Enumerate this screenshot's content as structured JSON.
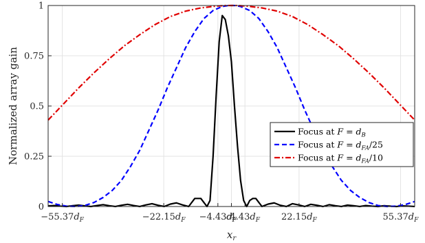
{
  "chart_data": {
    "type": "line",
    "xlabel_var": "x",
    "xlabel_sub": "r",
    "ylabel": "Normalized array gain",
    "xlim": [
      -60,
      60
    ],
    "ylim": [
      0,
      1
    ],
    "grid": true,
    "legend_position": "bottom-right",
    "x_ticks": [
      {
        "value": -55.37,
        "num": "−55.37",
        "sub": "F"
      },
      {
        "value": -22.15,
        "num": "−22.15",
        "sub": "F"
      },
      {
        "value": -4.43,
        "num": "−4.43",
        "sub": "F"
      },
      {
        "value": 0,
        "num": "",
        "sub": "F"
      },
      {
        "value": 4.43,
        "num": "4.43",
        "sub": "F"
      },
      {
        "value": 22.15,
        "num": "22.15",
        "sub": "F"
      },
      {
        "value": 55.37,
        "num": "55.37",
        "sub": "F"
      }
    ],
    "y_ticks": [
      "0",
      "0.25",
      "0.5",
      "0.75",
      "1"
    ],
    "series": [
      {
        "name_prefix": "Focus at ",
        "name_var": "F",
        "name_eq": " = ",
        "name_d": "d",
        "name_sub": "B",
        "name_tail": "",
        "color": "#000000",
        "dash": "solid",
        "x": [
          -60,
          -58,
          -56,
          -54,
          -52,
          -50,
          -48,
          -46,
          -44,
          -42,
          -40,
          -38,
          -36,
          -34,
          -32,
          -30,
          -28,
          -26,
          -24,
          -22,
          -20,
          -18,
          -16,
          -14,
          -12,
          -10,
          -9,
          -8,
          -7,
          -6,
          -5,
          -4,
          -3,
          -2,
          -1,
          0,
          1,
          2,
          3,
          4,
          5,
          6,
          7,
          8,
          9,
          10,
          12,
          14,
          16,
          18,
          20,
          22,
          24,
          26,
          28,
          30,
          32,
          34,
          36,
          38,
          40,
          42,
          44,
          46,
          48,
          50,
          52,
          54,
          56,
          58,
          60
        ],
        "y": [
          0.003,
          0.005,
          0.002,
          0.0,
          0.004,
          0.007,
          0.003,
          0.0,
          0.005,
          0.009,
          0.004,
          0.0,
          0.006,
          0.011,
          0.005,
          0.0,
          0.008,
          0.014,
          0.006,
          0.0,
          0.012,
          0.018,
          0.008,
          0.0,
          0.04,
          0.04,
          0.02,
          0.0,
          0.03,
          0.25,
          0.55,
          0.82,
          0.95,
          0.93,
          0.85,
          0.72,
          0.5,
          0.3,
          0.13,
          0.03,
          0.0,
          0.03,
          0.04,
          0.04,
          0.02,
          0.0,
          0.012,
          0.018,
          0.006,
          0.0,
          0.014,
          0.008,
          0.0,
          0.011,
          0.006,
          0.0,
          0.009,
          0.004,
          0.0,
          0.007,
          0.004,
          0.0,
          0.005,
          0.002,
          0.0,
          0.004,
          0.002,
          0.0,
          0.003,
          0.002,
          0.0
        ]
      },
      {
        "name_prefix": "Focus at ",
        "name_var": "F",
        "name_eq": " = ",
        "name_d": "d",
        "name_sub": "FA",
        "name_tail": "/25",
        "color": "#0000ff",
        "dash": "dashed",
        "x": [
          -60,
          -57,
          -54,
          -51,
          -48,
          -45,
          -42,
          -39,
          -36,
          -33,
          -30,
          -27,
          -24,
          -21,
          -18,
          -15,
          -12,
          -9,
          -6,
          -3,
          -1,
          0,
          1,
          3,
          6,
          9,
          12,
          15,
          18,
          21,
          24,
          27,
          30,
          33,
          36,
          39,
          42,
          45,
          48,
          51,
          54,
          57,
          60
        ],
        "y": [
          0.025,
          0.01,
          0.002,
          0.0,
          0.005,
          0.02,
          0.045,
          0.08,
          0.13,
          0.2,
          0.28,
          0.38,
          0.48,
          0.59,
          0.69,
          0.79,
          0.87,
          0.935,
          0.975,
          0.995,
          1.0,
          1.0,
          1.0,
          0.995,
          0.975,
          0.935,
          0.87,
          0.79,
          0.69,
          0.59,
          0.48,
          0.38,
          0.28,
          0.2,
          0.13,
          0.08,
          0.045,
          0.02,
          0.005,
          0.0,
          0.002,
          0.01,
          0.025
        ]
      },
      {
        "name_prefix": "Focus at ",
        "name_var": "F",
        "name_eq": " = ",
        "name_d": "d",
        "name_sub": "FA",
        "name_tail": "/10",
        "color": "#e00000",
        "dash": "dashdot",
        "x": [
          -60,
          -55,
          -50,
          -45,
          -40,
          -35,
          -30,
          -25,
          -20,
          -15,
          -10,
          -5,
          -2,
          0,
          2,
          5,
          10,
          15,
          20,
          25,
          30,
          35,
          40,
          45,
          50,
          55,
          60
        ],
        "y": [
          0.43,
          0.51,
          0.59,
          0.665,
          0.735,
          0.8,
          0.855,
          0.905,
          0.945,
          0.972,
          0.988,
          0.997,
          1.0,
          1.0,
          1.0,
          0.997,
          0.988,
          0.972,
          0.945,
          0.905,
          0.855,
          0.8,
          0.735,
          0.665,
          0.59,
          0.51,
          0.43
        ]
      }
    ]
  }
}
